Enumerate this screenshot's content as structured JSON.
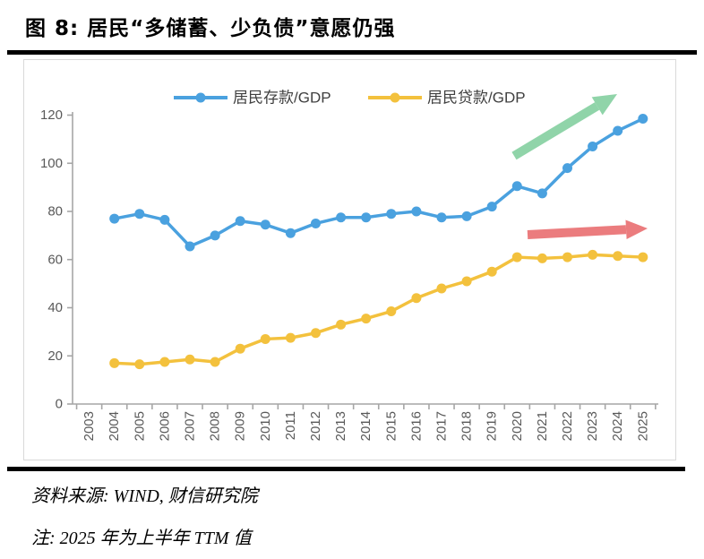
{
  "page": {
    "title": "图 8: 居民“多储蓄、少负债”意愿仍强",
    "source": "资料来源: WIND, 财信研究院",
    "note": "注: 2025 年为上半年 TTM 值"
  },
  "chart_data": {
    "type": "line",
    "title": "",
    "categories": [
      "2003",
      "2004",
      "2005",
      "2006",
      "2007",
      "2008",
      "2009",
      "2010",
      "2011",
      "2012",
      "2013",
      "2014",
      "2015",
      "2016",
      "2017",
      "2018",
      "2019",
      "2020",
      "2021",
      "2022",
      "2023",
      "2024",
      "2025"
    ],
    "series": [
      {
        "name": "居民存款/GDP",
        "color": "#4AA1DF",
        "values": [
          null,
          77,
          79,
          76.5,
          65.5,
          70,
          76,
          74.5,
          71,
          75,
          77.5,
          77.5,
          79,
          80,
          77.5,
          78,
          82,
          90.5,
          87.5,
          98,
          107,
          113.5,
          118.5
        ]
      },
      {
        "name": "居民贷款/GDP",
        "color": "#F3C13D",
        "values": [
          null,
          17,
          16.5,
          17.5,
          18.5,
          17.5,
          23,
          27,
          27.5,
          29.5,
          33,
          35.5,
          38.5,
          44,
          48,
          51,
          55,
          61,
          60.5,
          61,
          62,
          61.5,
          61
        ]
      }
    ],
    "ylim": [
      0,
      120
    ],
    "yticks": [
      0,
      20,
      40,
      60,
      80,
      100,
      120
    ],
    "grid": false,
    "legend_position": "top",
    "annotations": [
      {
        "type": "arrow",
        "direction": "up-right",
        "meaning": "deposits rising",
        "color": "#90D4A9"
      },
      {
        "type": "arrow",
        "direction": "right",
        "meaning": "loans flat",
        "color": "#EB7C7E"
      }
    ]
  },
  "style": {
    "axis_color": "#A6A6A6",
    "tick_label_color": "#595959",
    "legend_text_color": "#404040",
    "panel_border_color": "#D9D9D9",
    "rule_color": "#000000"
  }
}
